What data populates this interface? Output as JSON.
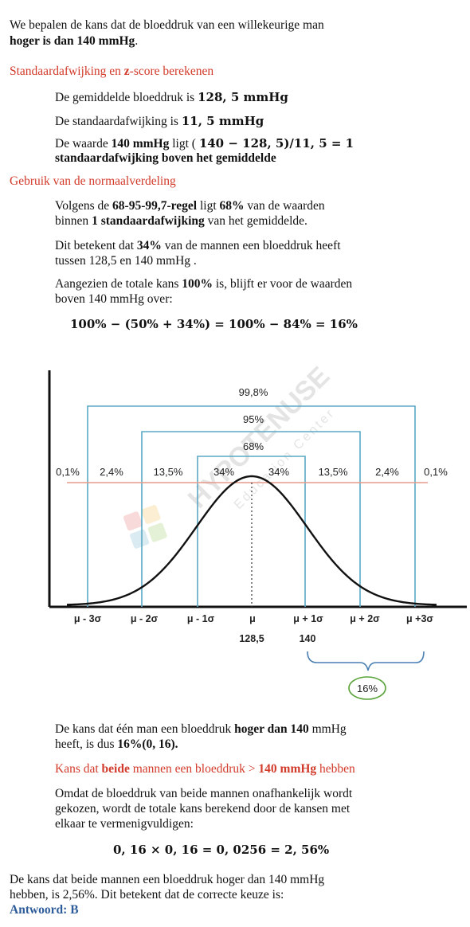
{
  "intro": {
    "l1": "We bepalen de kans dat de bloeddruk van een willekeurige man",
    "l2b": "hoger is dan 140 mmHg",
    "l2e": "."
  },
  "sec1": {
    "title_a": "Standaardafwijking en ",
    "title_b": "z",
    "title_c": "-score berekenen",
    "mean_a": "De gemiddelde bloeddruk is ",
    "mean_b": "128, 5  mmHg",
    "sd_a": "De standaardafwijking is ",
    "sd_b": "11, 5 mmHg",
    "z_a": "De waarde ",
    "z_b": "140 mmHg",
    "z_c": " ligt ( ",
    "z_d": "140 − 128, 5)/11, 5 = 1",
    "z_e": "standaardafwijking boven het gemiddelde"
  },
  "sec2": {
    "title": "Gebruik van de normaalverdeling",
    "p1_a": "Volgens de ",
    "p1_b": "68-95-99,7-regel",
    "p1_c": " ligt ",
    "p1_d": "68%",
    "p1_e": " van de waarden",
    "p1_f": "binnen ",
    "p1_g": "1 standaardafwijking",
    "p1_h": " van het gemiddelde.",
    "p2_a": "Dit betekent dat ",
    "p2_b": "34%",
    "p2_c": " van de mannen een bloeddruk heeft",
    "p2_d": "tussen 128,5 en 140 mmHg .",
    "p3_a": "Aangezien de totale kans ",
    "p3_b": "100%",
    "p3_c": " is, blijft er voor de waarden",
    "p3_d": "boven 140 mmHg over:",
    "eq": "100% − (50% + 34%) = 100% − 84% = 16%"
  },
  "chart": {
    "span_labels": [
      "99,8%",
      "95%",
      "68%"
    ],
    "region_labels": [
      "0,1%",
      "2,4%",
      "13,5%",
      "34%",
      "34%",
      "13,5%",
      "2,4%",
      "0,1%"
    ],
    "tick_labels": [
      "μ - 3σ",
      "μ - 2σ",
      "μ - 1σ",
      "μ",
      "μ + 1σ",
      "μ + 2σ",
      "μ +3σ"
    ],
    "mu_value": "128,5",
    "plus1_value": "140",
    "brace_label": "16%",
    "watermark_main": "HYPOTENUSE",
    "watermark_sub": "Education Center",
    "colors": {
      "lines": "#5aa9c4",
      "curve": "#111111",
      "ref_line": "#e89a8a",
      "brace": "#4a7fb3",
      "circle": "#5aa33a"
    }
  },
  "sec3": {
    "p1_a": "De kans dat één man een bloeddruk ",
    "p1_b": "hoger dan 140",
    "p1_c": " mmHg",
    "p1_d": "heeft, is dus ",
    "p1_e": "16%(0, 16).",
    "title_a": "Kans dat ",
    "title_b": "beide",
    "title_c": " mannen een bloeddruk > ",
    "title_d": "140 mmHg",
    "title_e": " hebben",
    "p2_l1": "Omdat de bloeddruk van beide mannen onafhankelijk wordt",
    "p2_l2": "gekozen, wordt de totale kans berekend door de kansen met",
    "p2_l3": "elkaar te vermenigvuldigen:",
    "eq": "0, 16 × 0, 16 = 0, 0256 = 2, 56%"
  },
  "conclusion": {
    "l1": "De kans dat beide mannen een bloeddruk hoger dan 140 mmHg",
    "l2": "hebben, is 2,56%. Dit betekent dat de correcte keuze is:",
    "answer": "Antwoord: B"
  }
}
